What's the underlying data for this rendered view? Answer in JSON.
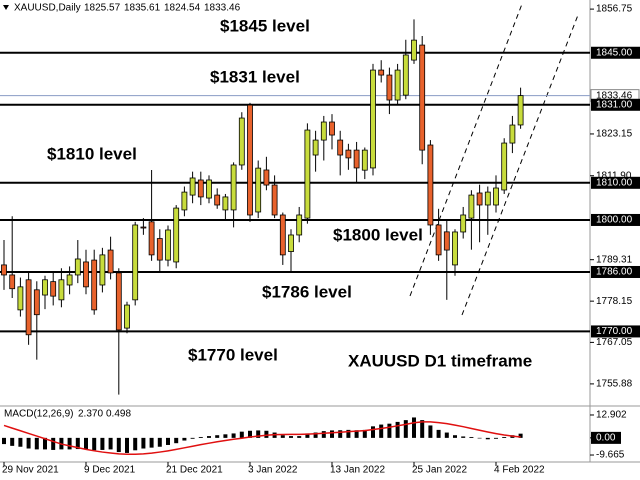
{
  "chart_data": [
    {
      "type": "candlestick",
      "symbol": "XAUUSD,Daily",
      "categories": [
        "29 Nov 2021",
        null,
        null,
        null,
        null,
        null,
        null,
        null,
        null,
        null,
        "9 Dec 2021",
        null,
        null,
        null,
        null,
        null,
        null,
        null,
        null,
        null,
        "21 Dec 2021",
        null,
        null,
        null,
        null,
        null,
        null,
        null,
        null,
        null,
        "3 Jan 2022",
        null,
        null,
        null,
        null,
        null,
        null,
        null,
        null,
        null,
        "13 Jan 2022",
        null,
        null,
        null,
        null,
        null,
        null,
        null,
        null,
        null,
        "25 Jan 2022",
        null,
        null,
        null,
        null,
        null,
        null,
        null,
        null,
        null,
        "4 Feb 2022",
        null,
        null,
        null
      ],
      "open": [
        1787.9,
        1785.2,
        1775.8,
        1783.9,
        1781.2,
        1779.8,
        1783.4,
        1778.5,
        1782.5,
        1785.2,
        1788.7,
        1789.2,
        1782.5,
        1791.9,
        1785.75,
        1770.9,
        1778.5,
        1798.1,
        1799.5,
        1795.0,
        1789.2,
        1788.7,
        1802.7,
        1806.7,
        1810.76,
        1805.9,
        1806.7,
        1802.7,
        1802.7,
        1814.8,
        1830.93,
        1802.15,
        1813.45,
        1809.4,
        1801.34,
        1791.5,
        1795.96,
        1800.5,
        1817.48,
        1821.5,
        1826.36,
        1821.5,
        1818.8,
        1818.8,
        1813.4,
        1814.0,
        1840.34,
        1839.0,
        1832.28,
        1833.6,
        1843.03,
        1847.07,
        1820.17,
        1798.65,
        1796.8,
        1787.9,
        1796.77,
        1800.5,
        1807.26,
        1804.03,
        1804.03,
        1808.07,
        1820.7,
        1825.57
      ],
      "high": [
        1794.6,
        1801.0,
        1784.5,
        1786.0,
        1783.5,
        1785.0,
        1786.0,
        1787.0,
        1787.5,
        1794.6,
        1792.0,
        1792.0,
        1792.5,
        1795.5,
        1787.0,
        1778.0,
        1799.5,
        1800.5,
        1813.45,
        1797.5,
        1798.5,
        1804.0,
        1809.0,
        1813.0,
        1813.0,
        1812.0,
        1808.5,
        1807.0,
        1815.5,
        1829.0,
        1831.5,
        1816.0,
        1817.0,
        1812.0,
        1802.0,
        1797.5,
        1803.5,
        1826.0,
        1824.0,
        1828.0,
        1828.5,
        1824.0,
        1820.5,
        1821.0,
        1819.5,
        1842.0,
        1843.0,
        1841.0,
        1842.0,
        1848.5,
        1854.0,
        1849.5,
        1821.5,
        1803.0,
        1800.0,
        1797.5,
        1803.5,
        1808.0,
        1809.5,
        1809.0,
        1812.0,
        1822.0,
        1828.0,
        1835.61
      ],
      "low": [
        1781.2,
        1779.0,
        1774.0,
        1766.4,
        1762.4,
        1776.0,
        1777.0,
        1776.5,
        1780.0,
        1783.0,
        1780.0,
        1774.5,
        1780.5,
        1784.0,
        1753.0,
        1769.5,
        1777.0,
        1796.0,
        1789.0,
        1786.0,
        1787.5,
        1787.0,
        1801.0,
        1804.5,
        1804.0,
        1804.5,
        1803.0,
        1800.0,
        1798.0,
        1813.5,
        1799.5,
        1800.5,
        1808.0,
        1800.5,
        1787.9,
        1786.2,
        1794.0,
        1799.0,
        1813.0,
        1816.0,
        1819.0,
        1812.0,
        1813.5,
        1810.0,
        1811.0,
        1812.0,
        1837.0,
        1828.5,
        1831.0,
        1832.5,
        1842.0,
        1815.0,
        1796.0,
        1789.0,
        1778.5,
        1785.0,
        1795.0,
        1792.0,
        1794.0,
        1796.0,
        1802.0,
        1807.0,
        1818.0,
        1824.54
      ],
      "close": [
        1785.2,
        1781.5,
        1782.0,
        1769.1,
        1774.5,
        1783.9,
        1779.5,
        1783.9,
        1785.2,
        1789.5,
        1782.0,
        1775.8,
        1790.6,
        1785.75,
        1770.4,
        1777.1,
        1798.65,
        1797.9,
        1790.6,
        1789.2,
        1797.3,
        1803.2,
        1807.5,
        1811.3,
        1806.2,
        1810.76,
        1804.03,
        1806.2,
        1814.8,
        1827.43,
        1801.34,
        1813.95,
        1809.4,
        1801.34,
        1790.6,
        1795.96,
        1801.34,
        1824.2,
        1821.5,
        1826.36,
        1822.86,
        1817.48,
        1816.7,
        1814.0,
        1818.8,
        1840.34,
        1839.0,
        1832.28,
        1840.34,
        1844.4,
        1848.4,
        1818.8,
        1798.65,
        1790.6,
        1791.9,
        1796.77,
        1801.34,
        1806.7,
        1804.03,
        1807.5,
        1808.6,
        1820.7,
        1825.55,
        1833.46
      ],
      "up_color": "#c8dc3c",
      "down_color": "#e8622c",
      "ylim": [
        1750.2,
        1859.2
      ],
      "yticks": [
        1856.75,
        1823.15,
        {
          "value": 1811.9,
          "label": "1811.90"
        },
        1789.31,
        1778.15,
        1767.05,
        1755.88
      ],
      "levels": [
        {
          "value": 1845,
          "label": "1845.00"
        },
        {
          "value": 1831,
          "label": "1831.00"
        },
        {
          "value": 1810,
          "label": "1810.00"
        },
        {
          "value": 1800,
          "label": "1800.00"
        },
        {
          "value": 1786,
          "label": "1786.00"
        },
        {
          "value": 1770,
          "label": "1770.00"
        }
      ],
      "annotations": [
        "$1845 level",
        "$1831 level",
        "$1810 level",
        "$1800 level",
        "$1786 level",
        "$1770 level",
        "XAUUSD D1 timeframe"
      ]
    },
    {
      "type": "macd",
      "title": "MACD(12,26,9)",
      "readout": [
        "2.370",
        "0.498"
      ],
      "histogram": [
        -3.5,
        -4.5,
        -5,
        -6,
        -6.5,
        -6.5,
        -6.8,
        -6.5,
        -6.5,
        -6.3,
        -6.5,
        -7,
        -6.8,
        -6.5,
        -8,
        -8.5,
        -7,
        -6,
        -5.5,
        -5,
        -4,
        -3,
        -1.5,
        -0.5,
        0.5,
        1,
        1.5,
        2,
        2.5,
        3.5,
        4,
        4.2,
        4,
        3,
        1.5,
        1,
        1,
        2.5,
        3,
        3.8,
        4.2,
        4.3,
        4.5,
        4.3,
        4.5,
        6.5,
        7.5,
        8,
        9,
        10,
        11.5,
        10,
        7,
        4.5,
        3,
        1.5,
        0.8,
        0.5,
        -0.3,
        -0.8,
        -0.5,
        0.5,
        1.5,
        2.37
      ],
      "signal": [
        7,
        5.5,
        4,
        2.5,
        1,
        -0.5,
        -2,
        -3.5,
        -4.5,
        -5.5,
        -6.5,
        -7.3,
        -8,
        -8.5,
        -9,
        -9.2,
        -9.2,
        -9,
        -8.6,
        -8,
        -7.3,
        -6.5,
        -5.6,
        -4.7,
        -3.8,
        -3,
        -2.2,
        -1.5,
        -0.8,
        -0.2,
        0.5,
        1,
        1.5,
        1.8,
        1.9,
        2,
        2,
        2.1,
        2.3,
        2.6,
        2.9,
        3.2,
        3.5,
        3.8,
        4.1,
        4.7,
        5.3,
        6,
        6.8,
        7.6,
        8.5,
        9,
        9,
        8.6,
        8,
        7.2,
        6.3,
        5.3,
        4.3,
        3.3,
        2.4,
        1.6,
        1,
        0.498
      ],
      "histogram_color": "#000000",
      "signal_color": "#e01010",
      "ylim": [
        -13.6,
        17.4
      ],
      "yticks": [
        12.902,
        {
          "value": 0,
          "label": "0.00"
        },
        -9.665
      ]
    }
  ]
}
